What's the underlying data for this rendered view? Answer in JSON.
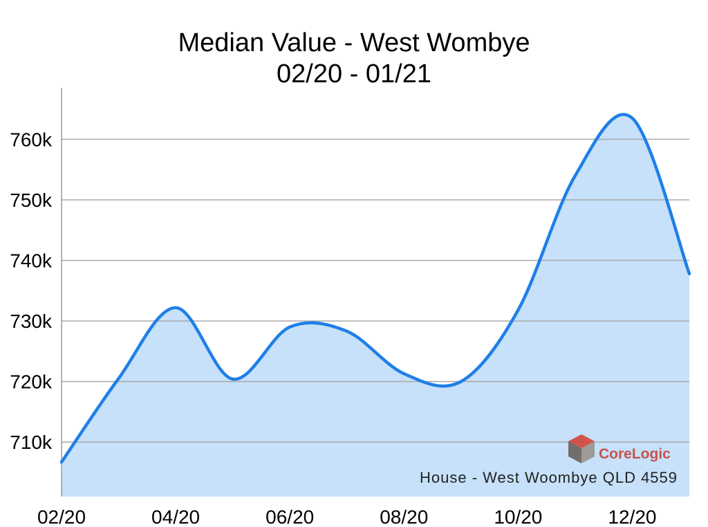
{
  "chart_data": {
    "type": "area",
    "title": "Median Value - West Wombye",
    "subtitle": "02/20 - 01/21",
    "x": [
      "02/20",
      "03/20",
      "04/20",
      "05/20",
      "06/20",
      "07/20",
      "08/20",
      "09/20",
      "10/20",
      "11/20",
      "12/20",
      "01/21"
    ],
    "series": [
      {
        "values": [
          706700,
          720500,
          732200,
          720400,
          729000,
          728300,
          721300,
          720000,
          731800,
          754000,
          763500,
          737800
        ]
      }
    ],
    "xticks": [
      "02/20",
      "04/20",
      "06/20",
      "08/20",
      "10/20",
      "12/20"
    ],
    "yticks": [
      710000,
      720000,
      730000,
      740000,
      750000,
      760000
    ],
    "ytick_labels": [
      "710k",
      "720k",
      "730k",
      "740k",
      "750k",
      "760k"
    ],
    "ylim": [
      701000,
      768500
    ],
    "grid": true,
    "smooth": true,
    "annotation": "House - West Woombye QLD 4559",
    "colors": {
      "line": "#1f7fe8",
      "fill": "#c6e1f9",
      "grid": "#a8a8a8",
      "axis": "#9a9a9a"
    }
  },
  "watermark": {
    "logo_text": "CoreLogic",
    "logo_icon": "corelogic-cube-icon"
  }
}
